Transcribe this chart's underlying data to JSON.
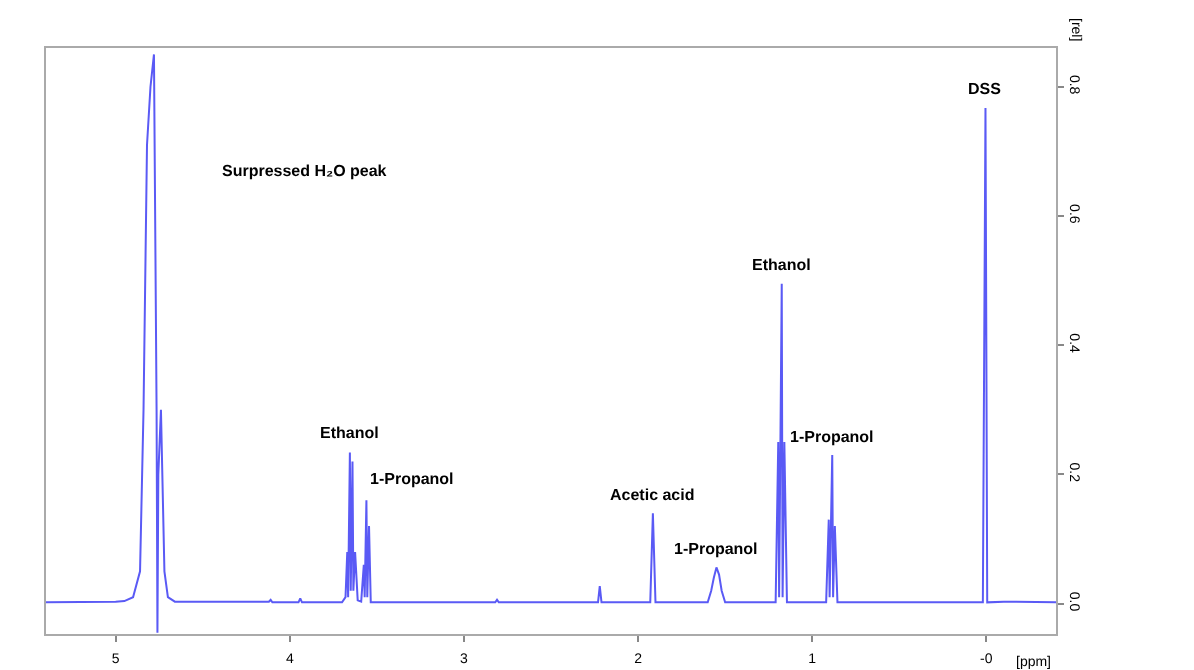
{
  "chart_data": {
    "type": "line",
    "xlabel": "[ppm]",
    "ylabel": "[rel]",
    "series": [
      {
        "color": "#5a5af5",
        "x": [
          5.4,
          5.0,
          4.95,
          4.9,
          4.86,
          4.84,
          4.82,
          4.8,
          4.78,
          4.765,
          4.76,
          4.755,
          4.74,
          4.72,
          4.7,
          4.66,
          4.12,
          4.11,
          4.1,
          3.95,
          3.94,
          3.93,
          3.7,
          3.68,
          3.67,
          3.665,
          3.655,
          3.65,
          3.64,
          3.635,
          3.625,
          3.61,
          3.59,
          3.575,
          3.57,
          3.56,
          3.555,
          3.545,
          3.535,
          3.3,
          2.82,
          2.81,
          2.8,
          2.23,
          2.22,
          2.21,
          1.93,
          1.915,
          1.9,
          1.6,
          1.58,
          1.565,
          1.55,
          1.535,
          1.52,
          1.5,
          1.21,
          1.195,
          1.19,
          1.175,
          1.17,
          1.16,
          1.145,
          0.92,
          0.905,
          0.9,
          0.885,
          0.88,
          0.87,
          0.855,
          0.02,
          0.005,
          0.0,
          -0.005,
          -0.1,
          -0.4
        ],
        "values": [
          0.002,
          0.003,
          0.004,
          0.01,
          0.05,
          0.3,
          0.71,
          0.8,
          0.85,
          0.3,
          -0.045,
          0.2,
          0.3,
          0.05,
          0.01,
          0.003,
          0.003,
          0.006,
          0.002,
          0.002,
          0.008,
          0.002,
          0.002,
          0.01,
          0.08,
          0.01,
          0.234,
          0.02,
          0.22,
          0.02,
          0.08,
          0.005,
          0.003,
          0.06,
          0.01,
          0.16,
          0.01,
          0.12,
          0.002,
          0.002,
          0.002,
          0.006,
          0.002,
          0.002,
          0.027,
          0.002,
          0.002,
          0.14,
          0.002,
          0.002,
          0.02,
          0.04,
          0.056,
          0.045,
          0.02,
          0.002,
          0.002,
          0.25,
          0.01,
          0.495,
          0.01,
          0.25,
          0.002,
          0.002,
          0.13,
          0.01,
          0.23,
          0.01,
          0.12,
          0.002,
          0.002,
          0.767,
          0.4,
          0.002,
          0.003,
          0.002
        ]
      }
    ],
    "xlim": [
      5.4,
      -0.4
    ],
    "xticks": [
      5,
      4,
      3,
      2,
      1,
      {
        "value": 0,
        "label": "-0"
      }
    ],
    "ylim": [
      -0.047,
      0.86
    ],
    "yticks": [
      {
        "value": 0,
        "label": "0.0"
      },
      {
        "value": 0.2,
        "label": "0.2"
      },
      {
        "value": 0.4,
        "label": "0.4"
      },
      {
        "value": 0.6,
        "label": "0.6"
      },
      {
        "value": 0.8,
        "label": "0.8"
      }
    ],
    "grid": false,
    "annotations": [
      "Surpressed H₂O peak",
      {
        "text": "Ethanol",
        "x": 3.655,
        "y": 0.234
      },
      {
        "text": "1-Propanol",
        "x": 3.56,
        "y": 0.16
      },
      {
        "text": "Acetic acid",
        "x": 1.915,
        "y": 0.14
      },
      {
        "text": "1-Propanol",
        "x": 1.55,
        "y": 0.056
      },
      {
        "text": "Ethanol",
        "x": 1.175,
        "y": 0.495
      },
      {
        "text": "1-Propanol",
        "x": 0.885,
        "y": 0.23
      },
      {
        "text": "DSS",
        "x": 0.005,
        "y": 0.767
      }
    ]
  }
}
